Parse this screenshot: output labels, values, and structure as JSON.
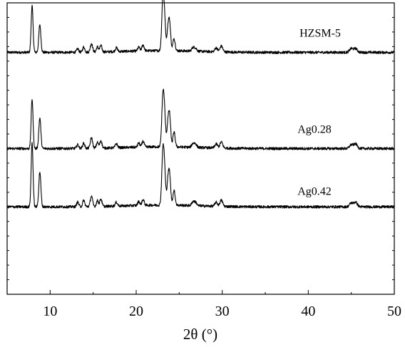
{
  "chart_data": {
    "type": "line",
    "xlabel": "2θ (°)",
    "ylabel": "",
    "title": "",
    "xlim": [
      5,
      50
    ],
    "ylim": [
      0,
      100
    ],
    "x_ticks": [
      10,
      20,
      30,
      40,
      50
    ],
    "x_tick_labels": [
      "10",
      "20",
      "30",
      "40",
      "50"
    ],
    "grid": false,
    "legend": "none",
    "series": [
      {
        "name": "HZSM-5",
        "baseline": 83,
        "scale": 1.0,
        "peaks": [
          [
            7.9,
            16.0,
            0.11
          ],
          [
            8.8,
            9.5,
            0.12
          ],
          [
            13.2,
            1.2,
            0.12
          ],
          [
            13.9,
            1.8,
            0.12
          ],
          [
            14.8,
            3.0,
            0.13
          ],
          [
            15.5,
            1.8,
            0.12
          ],
          [
            15.9,
            2.2,
            0.12
          ],
          [
            17.7,
            1.3,
            0.13
          ],
          [
            20.3,
            1.3,
            0.12
          ],
          [
            20.8,
            2.0,
            0.13
          ],
          [
            23.1,
            17.0,
            0.13
          ],
          [
            23.3,
            9.0,
            0.12
          ],
          [
            23.7,
            7.5,
            0.13
          ],
          [
            23.9,
            8.0,
            0.12
          ],
          [
            24.4,
            4.2,
            0.13
          ],
          [
            26.6,
            1.2,
            0.15
          ],
          [
            26.9,
            1.0,
            0.15
          ],
          [
            29.3,
            1.4,
            0.15
          ],
          [
            29.9,
            2.0,
            0.16
          ],
          [
            45.0,
            1.3,
            0.2
          ],
          [
            45.5,
            1.3,
            0.2
          ]
        ]
      },
      {
        "name": "Ag0.28",
        "baseline": 50,
        "scale": 1.0,
        "peaks": [
          [
            7.9,
            17.0,
            0.11
          ],
          [
            8.8,
            10.5,
            0.12
          ],
          [
            13.2,
            1.3,
            0.12
          ],
          [
            13.9,
            1.8,
            0.12
          ],
          [
            14.8,
            3.6,
            0.13
          ],
          [
            15.5,
            2.0,
            0.12
          ],
          [
            15.9,
            2.6,
            0.12
          ],
          [
            17.7,
            1.4,
            0.13
          ],
          [
            20.3,
            1.4,
            0.12
          ],
          [
            20.8,
            2.0,
            0.13
          ],
          [
            23.1,
            16.5,
            0.13
          ],
          [
            23.3,
            9.5,
            0.12
          ],
          [
            23.7,
            8.0,
            0.13
          ],
          [
            23.9,
            9.0,
            0.12
          ],
          [
            24.4,
            5.0,
            0.13
          ],
          [
            26.6,
            1.3,
            0.15
          ],
          [
            26.9,
            1.1,
            0.15
          ],
          [
            29.3,
            1.4,
            0.15
          ],
          [
            29.9,
            2.1,
            0.16
          ],
          [
            45.0,
            1.3,
            0.2
          ],
          [
            45.5,
            1.6,
            0.2
          ]
        ]
      },
      {
        "name": "Ag0.42",
        "baseline": 30,
        "scale": 1.0,
        "peaks": [
          [
            7.9,
            22.0,
            0.11
          ],
          [
            8.8,
            12.0,
            0.12
          ],
          [
            13.2,
            1.6,
            0.12
          ],
          [
            13.9,
            2.2,
            0.12
          ],
          [
            14.8,
            3.6,
            0.13
          ],
          [
            15.5,
            2.0,
            0.12
          ],
          [
            15.9,
            2.6,
            0.12
          ],
          [
            17.7,
            1.3,
            0.13
          ],
          [
            20.3,
            1.4,
            0.12
          ],
          [
            20.8,
            2.0,
            0.13
          ],
          [
            23.1,
            17.5,
            0.13
          ],
          [
            23.3,
            10.0,
            0.12
          ],
          [
            23.7,
            8.5,
            0.13
          ],
          [
            23.9,
            8.5,
            0.12
          ],
          [
            24.4,
            5.0,
            0.13
          ],
          [
            26.6,
            1.3,
            0.15
          ],
          [
            26.9,
            1.1,
            0.15
          ],
          [
            29.3,
            1.4,
            0.15
          ],
          [
            29.9,
            2.1,
            0.16
          ],
          [
            45.0,
            1.3,
            0.2
          ],
          [
            45.5,
            1.6,
            0.2
          ]
        ]
      }
    ]
  }
}
